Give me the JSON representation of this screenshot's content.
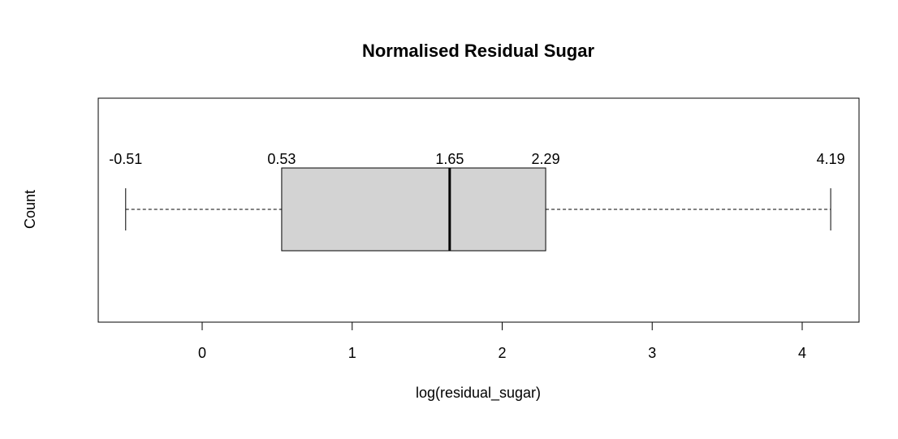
{
  "chart_data": {
    "type": "boxplot",
    "orientation": "horizontal",
    "title": "Normalised Residual Sugar",
    "xlabel": "log(residual_sugar)",
    "ylabel": "Count",
    "xlim": [
      -0.7,
      4.38
    ],
    "x_ticks": [
      0,
      1,
      2,
      3,
      4
    ],
    "x_tick_labels": [
      "0",
      "1",
      "2",
      "3",
      "4"
    ],
    "stats": {
      "min": -0.51,
      "q1": 0.53,
      "median": 1.65,
      "q3": 2.29,
      "max": 4.19
    },
    "value_labels": [
      "-0.51",
      "0.53",
      "1.65",
      "2.29",
      "4.19"
    ],
    "box_fill": "#d3d3d3",
    "grid": false
  }
}
